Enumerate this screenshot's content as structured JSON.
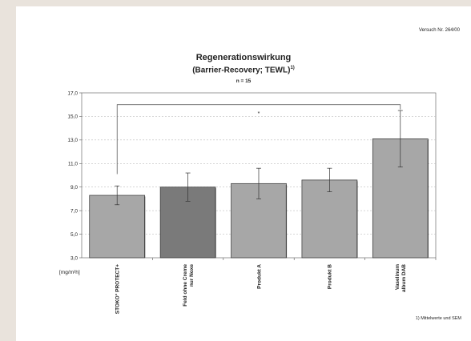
{
  "header": {
    "trial_number": "Versuch Nr. 264/00"
  },
  "footnote": "1) Mittelwerte und SEM",
  "colors": {
    "bar_light": "#a7a7a7",
    "bar_dark": "#7a7a7a",
    "grid": "#bdbdbd",
    "axis": "#555555"
  },
  "chart_data": {
    "type": "bar",
    "title": "Regenerationswirkung",
    "subtitle": "(Barrier-Recovery; TEWL)",
    "title_superscript": "1)",
    "sample_size": "n = 15",
    "ylabel": "[mg/m²h]",
    "ylim": [
      3.0,
      17.0
    ],
    "yticks": [
      "3,0",
      "5,0",
      "7,0",
      "9,0",
      "11,0",
      "13,0",
      "15,0",
      "17,0"
    ],
    "grid": true,
    "categories": [
      "STOKO° PROTECT+",
      "Feld ohne Creme nur Noxe",
      "Produkt A",
      "Produkt B",
      "Vaselinum album DAB"
    ],
    "category_lines": [
      [
        "STOKO° PROTECT+"
      ],
      [
        "Feld ohne Creme",
        "nur Noxe"
      ],
      [
        "Produkt A"
      ],
      [
        "Produkt B"
      ],
      [
        "Vaselinum",
        "album DAB"
      ]
    ],
    "values": [
      8.3,
      9.0,
      9.3,
      9.6,
      13.1
    ],
    "errors": [
      0.8,
      1.2,
      1.3,
      1.0,
      2.4
    ],
    "bar_colors": [
      "#a7a7a7",
      "#7a7a7a",
      "#a7a7a7",
      "#a7a7a7",
      "#a7a7a7"
    ],
    "significance": {
      "from_category": 0,
      "to_category": 4,
      "level": 16.0,
      "marker": "*"
    }
  }
}
